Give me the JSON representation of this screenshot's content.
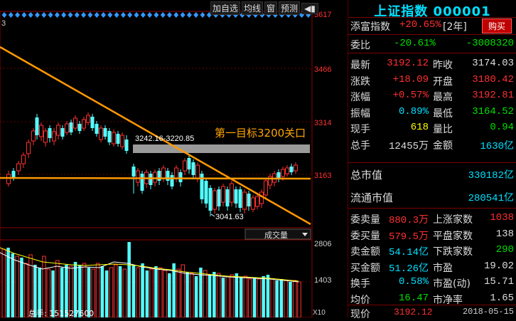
{
  "toolbar": {
    "add_watch": "加自选",
    "ma_line": "均线",
    "window": "窗",
    "forecast": "预测",
    "more_icon": "more-icon"
  },
  "chart_left_label": "3",
  "y_axis_price": [
    "3617",
    "3466",
    "3314",
    "3163"
  ],
  "y_axis_volume": [
    "2806",
    "1403"
  ],
  "annotations": {
    "range_label": "3242.16-3220.85",
    "target_label": "第一目标3200关口",
    "low_label": "3041.63"
  },
  "volume_selector": "成交量",
  "volume_total_label": "总手: 151527600",
  "volume_x_label": "X10",
  "quote": {
    "title": "上证指数 000001",
    "row_tiankui": {
      "label": "添富指数",
      "value": "+20.65%",
      "period": "[2年]",
      "buy": "购买"
    },
    "wei_bi": {
      "label": "委比",
      "value": "-20.61%",
      "value2": "-3008320"
    },
    "rows": [
      {
        "k1": "最新",
        "v1": "3192.12",
        "c1": "red",
        "k2": "昨收",
        "v2": "3174.03",
        "c2": "wht"
      },
      {
        "k1": "涨跌",
        "v1": "+18.09",
        "c1": "red",
        "k2": "开盘",
        "v2": "3180.42",
        "c2": "red"
      },
      {
        "k1": "涨幅",
        "v1": "+0.57%",
        "c1": "red",
        "k2": "最高",
        "v2": "3192.81",
        "c2": "red"
      },
      {
        "k1": "振幅",
        "v1": "0.89%",
        "c1": "cyan",
        "k2": "最低",
        "v2": "3164.52",
        "c2": "grn"
      },
      {
        "k1": "现手",
        "v1": "618",
        "c1": "yel",
        "k2": "量比",
        "v2": "0.94",
        "c2": "grn"
      },
      {
        "k1": "总手",
        "v1": "12455万",
        "c1": "wht",
        "k2": "金额",
        "v2": "1630亿",
        "c2": "cyan"
      }
    ],
    "market_cap": {
      "label": "总市值",
      "value": "330182亿"
    },
    "float_cap": {
      "label": "流通市值",
      "value": "280541亿"
    },
    "rows2": [
      {
        "k1": "委卖量",
        "v1": "880.3万",
        "c1": "red",
        "k2": "上涨家数",
        "v2": "1038",
        "c2": "red"
      },
      {
        "k1": "委买量",
        "v1": "579.5万",
        "c1": "red",
        "k2": "平盘家数",
        "v2": "138",
        "c2": "wht"
      },
      {
        "k1": "卖金额",
        "v1": "54.14亿",
        "c1": "cyan",
        "k2": "下跌家数",
        "v2": "290",
        "c2": "grn"
      },
      {
        "k1": "买金额",
        "v1": "51.26亿",
        "c1": "cyan",
        "k2": "市盈",
        "v2": "19.02",
        "c2": "wht"
      },
      {
        "k1": "换手",
        "v1": "0.58%",
        "c1": "cyan",
        "k2": "市盈(动)",
        "v2": "15.71",
        "c2": "wht"
      },
      {
        "k1": "均价",
        "v1": "16.47",
        "c1": "grn",
        "k2": "市净率",
        "v2": "1.65",
        "c2": "wht"
      }
    ],
    "bottom": {
      "label": "现价",
      "value": "3192.12",
      "date": "2018-05-15"
    }
  },
  "colors": {
    "up": "#ff3030",
    "down": "#54ffff",
    "trend": "#ff9900",
    "grid": "#8b0000"
  }
}
